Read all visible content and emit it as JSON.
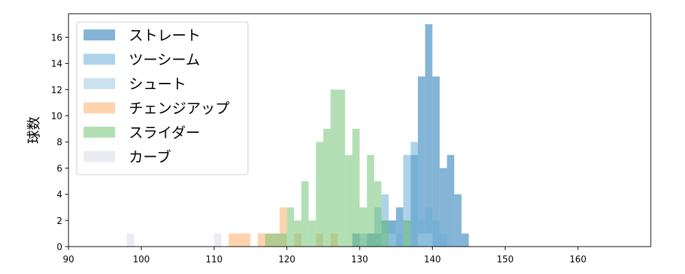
{
  "chart_data": {
    "type": "bar",
    "subtype": "overlapping-histogram",
    "title": "",
    "xlabel": "",
    "ylabel": "球数",
    "xlim": [
      90,
      170
    ],
    "ylim": [
      0,
      17.8
    ],
    "xticks": [
      90,
      100,
      110,
      120,
      130,
      140,
      150,
      160
    ],
    "yticks": [
      0,
      2,
      4,
      6,
      8,
      10,
      12,
      14,
      16
    ],
    "grid": false,
    "legend_position": "top-left",
    "bin_width": 1,
    "series": [
      {
        "name": "ストレート",
        "color": "#1f77b4",
        "bins": [
          {
            "x": 129,
            "count": 1
          },
          {
            "x": 130,
            "count": 0
          },
          {
            "x": 131,
            "count": 1
          },
          {
            "x": 132,
            "count": 1
          },
          {
            "x": 133,
            "count": 2
          },
          {
            "x": 134,
            "count": 2
          },
          {
            "x": 135,
            "count": 3
          },
          {
            "x": 136,
            "count": 2
          },
          {
            "x": 137,
            "count": 7
          },
          {
            "x": 138,
            "count": 13
          },
          {
            "x": 139,
            "count": 17
          },
          {
            "x": 140,
            "count": 13
          },
          {
            "x": 141,
            "count": 6
          },
          {
            "x": 142,
            "count": 7
          },
          {
            "x": 143,
            "count": 4
          },
          {
            "x": 144,
            "count": 1
          }
        ]
      },
      {
        "name": "ツーシーム",
        "color": "#6baed6",
        "bins": [
          {
            "x": 130,
            "count": 1
          },
          {
            "x": 131,
            "count": 1
          },
          {
            "x": 132,
            "count": 3
          },
          {
            "x": 133,
            "count": 4
          },
          {
            "x": 134,
            "count": 2
          },
          {
            "x": 135,
            "count": 1
          },
          {
            "x": 136,
            "count": 7
          },
          {
            "x": 137,
            "count": 8
          },
          {
            "x": 138,
            "count": 2
          },
          {
            "x": 139,
            "count": 3
          },
          {
            "x": 140,
            "count": 2
          },
          {
            "x": 141,
            "count": 1
          }
        ]
      },
      {
        "name": "シュート",
        "color": "#9ecae1",
        "bins": [
          {
            "x": 133,
            "count": 1
          },
          {
            "x": 134,
            "count": 1
          },
          {
            "x": 136,
            "count": 2
          },
          {
            "x": 138,
            "count": 1
          },
          {
            "x": 139,
            "count": 1
          }
        ]
      },
      {
        "name": "チェンジアップ",
        "color": "#fdae6b",
        "bins": [
          {
            "x": 112,
            "count": 1
          },
          {
            "x": 113,
            "count": 1
          },
          {
            "x": 114,
            "count": 1
          },
          {
            "x": 116,
            "count": 1
          },
          {
            "x": 117,
            "count": 1
          },
          {
            "x": 118,
            "count": 1
          },
          {
            "x": 119,
            "count": 3
          },
          {
            "x": 121,
            "count": 1
          },
          {
            "x": 124,
            "count": 1
          },
          {
            "x": 126,
            "count": 1
          }
        ]
      },
      {
        "name": "スライダー",
        "color": "#74c476",
        "bins": [
          {
            "x": 117,
            "count": 1
          },
          {
            "x": 118,
            "count": 1
          },
          {
            "x": 119,
            "count": 1
          },
          {
            "x": 120,
            "count": 3
          },
          {
            "x": 121,
            "count": 2
          },
          {
            "x": 122,
            "count": 5
          },
          {
            "x": 123,
            "count": 2
          },
          {
            "x": 124,
            "count": 8
          },
          {
            "x": 125,
            "count": 9
          },
          {
            "x": 126,
            "count": 12
          },
          {
            "x": 127,
            "count": 12
          },
          {
            "x": 128,
            "count": 7
          },
          {
            "x": 129,
            "count": 9
          },
          {
            "x": 130,
            "count": 3
          },
          {
            "x": 131,
            "count": 7
          },
          {
            "x": 132,
            "count": 5
          },
          {
            "x": 133,
            "count": 2
          },
          {
            "x": 136,
            "count": 2
          }
        ]
      },
      {
        "name": "カーブ",
        "color": "#dadaeb",
        "bins": [
          {
            "x": 98,
            "count": 1
          },
          {
            "x": 110,
            "count": 1
          }
        ]
      }
    ]
  }
}
